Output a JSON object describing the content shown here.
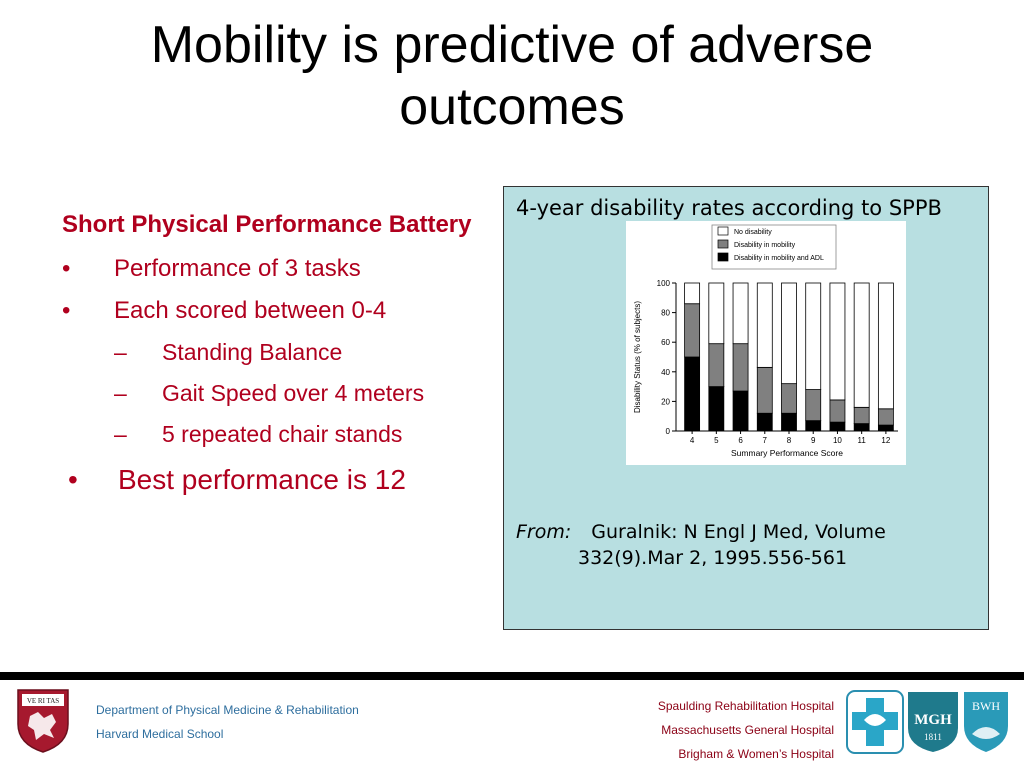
{
  "slide": {
    "title_line1": "Mobility is predictive of adverse",
    "title_line2": "outcomes"
  },
  "left": {
    "heading": "Short Physical Performance Battery",
    "bullets": [
      "Performance of 3 tasks",
      "Each scored between 0-4"
    ],
    "subbullets": [
      "Standing Balance",
      "Gait Speed over 4 meters",
      "5 repeated chair stands"
    ],
    "final_bullet": "Best performance is 12",
    "bullet_glyph": "•",
    "dash_glyph": "–"
  },
  "panel": {
    "title": "4-year disability rates according to SPPB",
    "from_label": "From:",
    "citation_line1": "Guralnik: N Engl J Med, Volume",
    "citation_line2": "332(9).Mar 2, 1995.556-561",
    "background_color": "#b8dfe1"
  },
  "chart_data": {
    "type": "bar",
    "stacked": true,
    "categories": [
      "4",
      "5",
      "6",
      "7",
      "8",
      "9",
      "10",
      "11",
      "12"
    ],
    "xlabel": "Summary Performance Score",
    "ylabel": "Disability Status (% of subjects)",
    "ylim": [
      0,
      100
    ],
    "yticks": [
      0,
      20,
      40,
      60,
      80,
      100
    ],
    "legend_position": "top",
    "series": [
      {
        "name": "Disability in mobility and ADL",
        "color": "#000000",
        "values": [
          50,
          30,
          27,
          12,
          12,
          7,
          6,
          5,
          4
        ]
      },
      {
        "name": "Disability in mobility",
        "color": "#808080",
        "values": [
          36,
          29,
          32,
          31,
          20,
          21,
          15,
          11,
          11
        ]
      },
      {
        "name": "No disability",
        "color": "#ffffff",
        "values": [
          14,
          41,
          41,
          57,
          68,
          72,
          79,
          84,
          85
        ]
      }
    ],
    "legend_order": [
      "No disability",
      "Disability in mobility",
      "Disability in mobility and ADL"
    ]
  },
  "footer": {
    "dept_line1": "Department of Physical Medicine & Rehabilitation",
    "dept_line2": "Harvard Medical School",
    "hosp_line1": "Spaulding Rehabilitation Hospital",
    "hosp_line2": "Massachusetts General Hospital",
    "hosp_line3": "Brigham & Women’s Hospital",
    "shield_text": "VE RI TAS",
    "mgh_logo_text": "MGH",
    "mgh_logo_year": "1811",
    "bwh_logo_text": "BWH"
  }
}
